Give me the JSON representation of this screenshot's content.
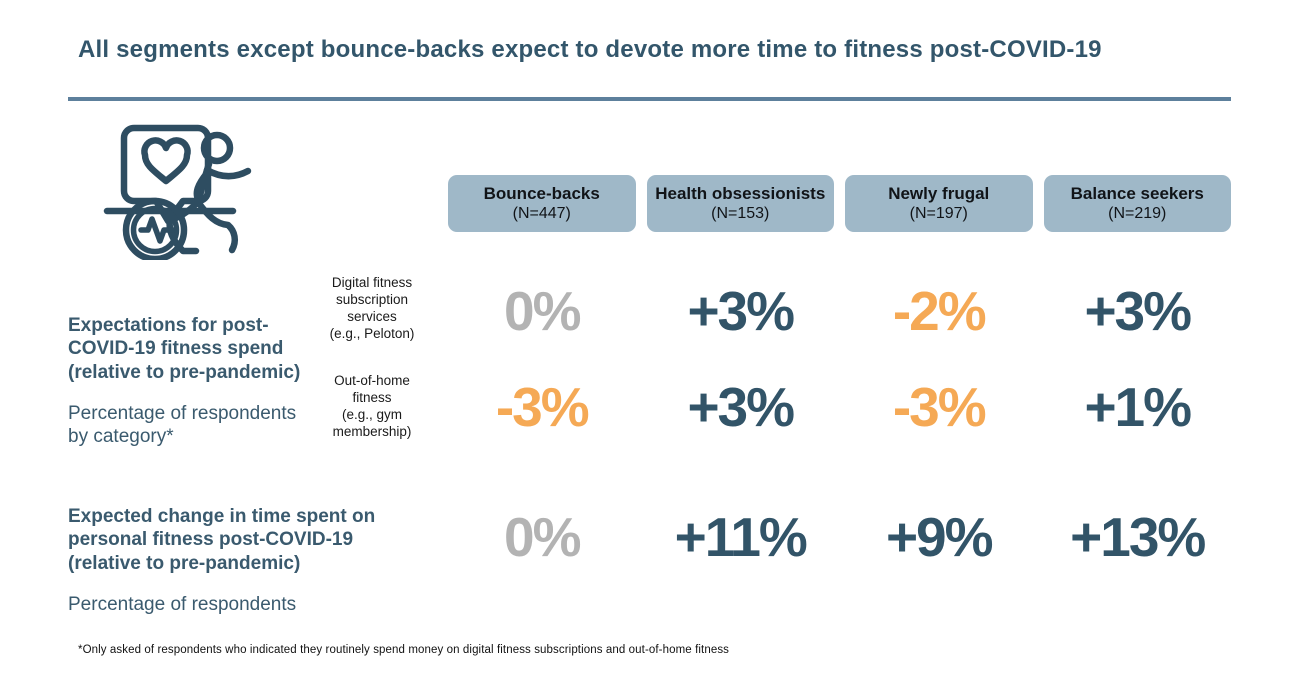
{
  "title": "All segments except bounce-backs expect to devote more time to fitness post-COVID-19",
  "colors": {
    "title_slate": "#33566b",
    "divider_blue": "#5d809c",
    "pill_bg": "#9fb8c8",
    "value_positive": "#325468",
    "value_negative": "#f5a955",
    "value_zero": "#b3b3b3",
    "icon_stroke": "#2e4d61"
  },
  "icon": {
    "name": "runner-heart-pulse-icon"
  },
  "columns": [
    {
      "name": "Bounce-backs",
      "n": "(N=447)"
    },
    {
      "name": "Health obsessionists",
      "n": "(N=153)"
    },
    {
      "name": "Newly frugal",
      "n": "(N=197)"
    },
    {
      "name": "Balance seekers",
      "n": "(N=219)"
    }
  ],
  "left_blocks": {
    "spend": {
      "bold": "Expectations for post-\nCOVID-19 fitness spend\n(relative to pre-pandemic)",
      "sub": "Percentage of respondents\nby category*"
    },
    "time": {
      "bold": "Expected change in time spent on\npersonal fitness post-COVID-19\n(relative to pre-pandemic)",
      "sub": "Percentage of respondents"
    }
  },
  "subrows": [
    {
      "label": "Digital fitness\nsubscription\nservices\n(e.g., Peloton)"
    },
    {
      "label": "Out-of-home\nfitness\n(e.g., gym\nmembership)"
    }
  ],
  "value_rows": [
    {
      "cells": [
        {
          "text": "0%",
          "tone": "zero"
        },
        {
          "text": "+3%",
          "tone": "up"
        },
        {
          "text": "-2%",
          "tone": "down"
        },
        {
          "text": "+3%",
          "tone": "up"
        }
      ]
    },
    {
      "cells": [
        {
          "text": "-3%",
          "tone": "down"
        },
        {
          "text": "+3%",
          "tone": "up"
        },
        {
          "text": "-3%",
          "tone": "down"
        },
        {
          "text": "+1%",
          "tone": "up"
        }
      ]
    },
    {
      "cells": [
        {
          "text": "0%",
          "tone": "zero"
        },
        {
          "text": "+11%",
          "tone": "up"
        },
        {
          "text": "+9%",
          "tone": "up"
        },
        {
          "text": "+13%",
          "tone": "up"
        }
      ]
    }
  ],
  "footnote": "*Only asked of respondents who indicated they routinely spend money on digital fitness subscriptions and out-of-home fitness",
  "chart_data": {
    "type": "table",
    "title": "All segments except bounce-backs expect to devote more time to fitness post-COVID-19",
    "columns": [
      "Bounce-backs (N=447)",
      "Health obsessionists (N=153)",
      "Newly frugal (N=197)",
      "Balance seekers (N=219)"
    ],
    "sample_sizes": [
      447,
      153,
      197,
      219
    ],
    "rows": [
      {
        "group": "Expectations for post-COVID-19 fitness spend (relative to pre-pandemic), percentage of respondents by category",
        "label": "Digital fitness subscription services (e.g., Peloton)",
        "values_pct": [
          0,
          3,
          -2,
          3
        ]
      },
      {
        "group": "Expectations for post-COVID-19 fitness spend (relative to pre-pandemic), percentage of respondents by category",
        "label": "Out-of-home fitness (e.g., gym membership)",
        "values_pct": [
          -3,
          3,
          -3,
          1
        ]
      },
      {
        "group": "Expected change in time spent on personal fitness post-COVID-19 (relative to pre-pandemic), percentage of respondents",
        "label": "Expected change in time spent on personal fitness",
        "values_pct": [
          0,
          11,
          9,
          13
        ]
      }
    ],
    "value_color_rule": "positive = dark slate, negative = orange, zero = gray"
  }
}
